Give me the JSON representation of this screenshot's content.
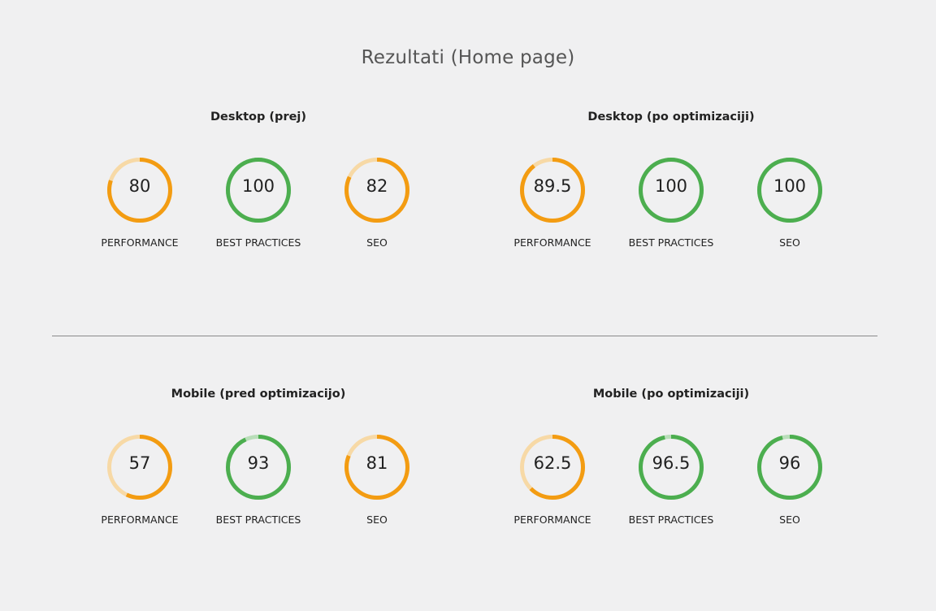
{
  "title": "Rezultati (Home page)",
  "colors": {
    "orange": "#f39c12",
    "orange_track": "#f7d9a6",
    "green": "#4cae4f",
    "green_track": "#b9deb9"
  },
  "groups": [
    {
      "title": "Desktop (prej)",
      "gauges": [
        {
          "label": "PERFORMANCE",
          "value": "80",
          "score": 80,
          "color": "orange"
        },
        {
          "label": "BEST PRACTICES",
          "value": "100",
          "score": 100,
          "color": "green"
        },
        {
          "label": "SEO",
          "value": "82",
          "score": 82,
          "color": "orange"
        }
      ]
    },
    {
      "title": "Desktop (po optimizaciji)",
      "gauges": [
        {
          "label": "PERFORMANCE",
          "value": "89.5",
          "score": 89.5,
          "color": "orange"
        },
        {
          "label": "BEST PRACTICES",
          "value": "100",
          "score": 100,
          "color": "green"
        },
        {
          "label": "SEO",
          "value": "100",
          "score": 100,
          "color": "green"
        }
      ]
    },
    {
      "title": "Mobile (pred optimizacijo)",
      "gauges": [
        {
          "label": "PERFORMANCE",
          "value": "57",
          "score": 57,
          "color": "orange"
        },
        {
          "label": "BEST PRACTICES",
          "value": "93",
          "score": 93,
          "color": "green"
        },
        {
          "label": "SEO",
          "value": "81",
          "score": 81,
          "color": "orange"
        }
      ]
    },
    {
      "title": "Mobile (po optimizaciji)",
      "gauges": [
        {
          "label": "PERFORMANCE",
          "value": "62.5",
          "score": 62.5,
          "color": "orange"
        },
        {
          "label": "BEST PRACTICES",
          "value": "96.5",
          "score": 96.5,
          "color": "green"
        },
        {
          "label": "SEO",
          "value": "96",
          "score": 96,
          "color": "green"
        }
      ]
    }
  ]
}
